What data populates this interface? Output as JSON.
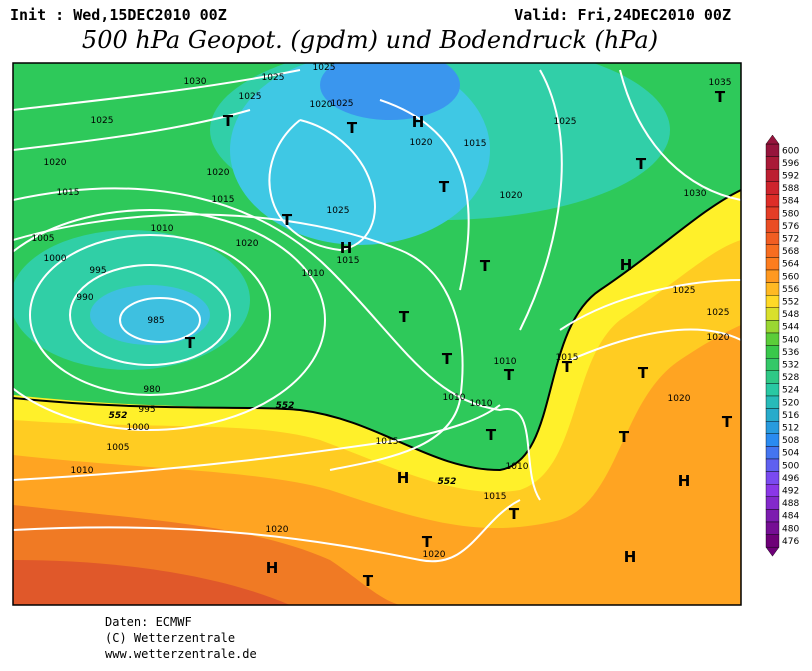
{
  "header": {
    "init": "Init : Wed,15DEC2010 00Z",
    "valid": "Valid: Fri,24DEC2010 00Z",
    "title": "500 hPa Geopot. (gpdm) und Bodendruck (hPa)"
  },
  "map": {
    "pressure_labels": [
      "1030",
      "1025",
      "1025",
      "1025",
      "1020",
      "1025",
      "1025",
      "1020",
      "1020",
      "1015",
      "1015",
      "1010",
      "1005",
      "1000",
      "995",
      "990",
      "985",
      "1020",
      "1015",
      "1025",
      "1025",
      "1015",
      "1010",
      "1020",
      "1020",
      "1030",
      "1035",
      "1025",
      "1025",
      "1020",
      "1015",
      "1010",
      "1010",
      "1010",
      "1020",
      "980",
      "995",
      "1000",
      "1005",
      "1010",
      "1015",
      "1010",
      "1015",
      "1020",
      "1020"
    ],
    "contour_labels": [
      "552",
      "552",
      "552"
    ],
    "centers": [
      "T",
      "H",
      "T",
      "T",
      "T",
      "T",
      "T",
      "H",
      "T",
      "H",
      "T",
      "T",
      "T",
      "T",
      "T",
      "T",
      "T",
      "T",
      "T",
      "H",
      "H",
      "T",
      "T",
      "H",
      "T",
      "H"
    ]
  },
  "colorbar": {
    "labels": [
      600,
      596,
      592,
      588,
      584,
      580,
      576,
      572,
      568,
      564,
      560,
      556,
      552,
      548,
      544,
      540,
      536,
      532,
      528,
      524,
      520,
      516,
      512,
      508,
      504,
      500,
      496,
      492,
      488,
      484,
      480,
      476
    ]
  },
  "footer": [
    "Daten: ECMWF",
    "(C) Wetterzentrale",
    "www.wetterzentrale.de"
  ]
}
